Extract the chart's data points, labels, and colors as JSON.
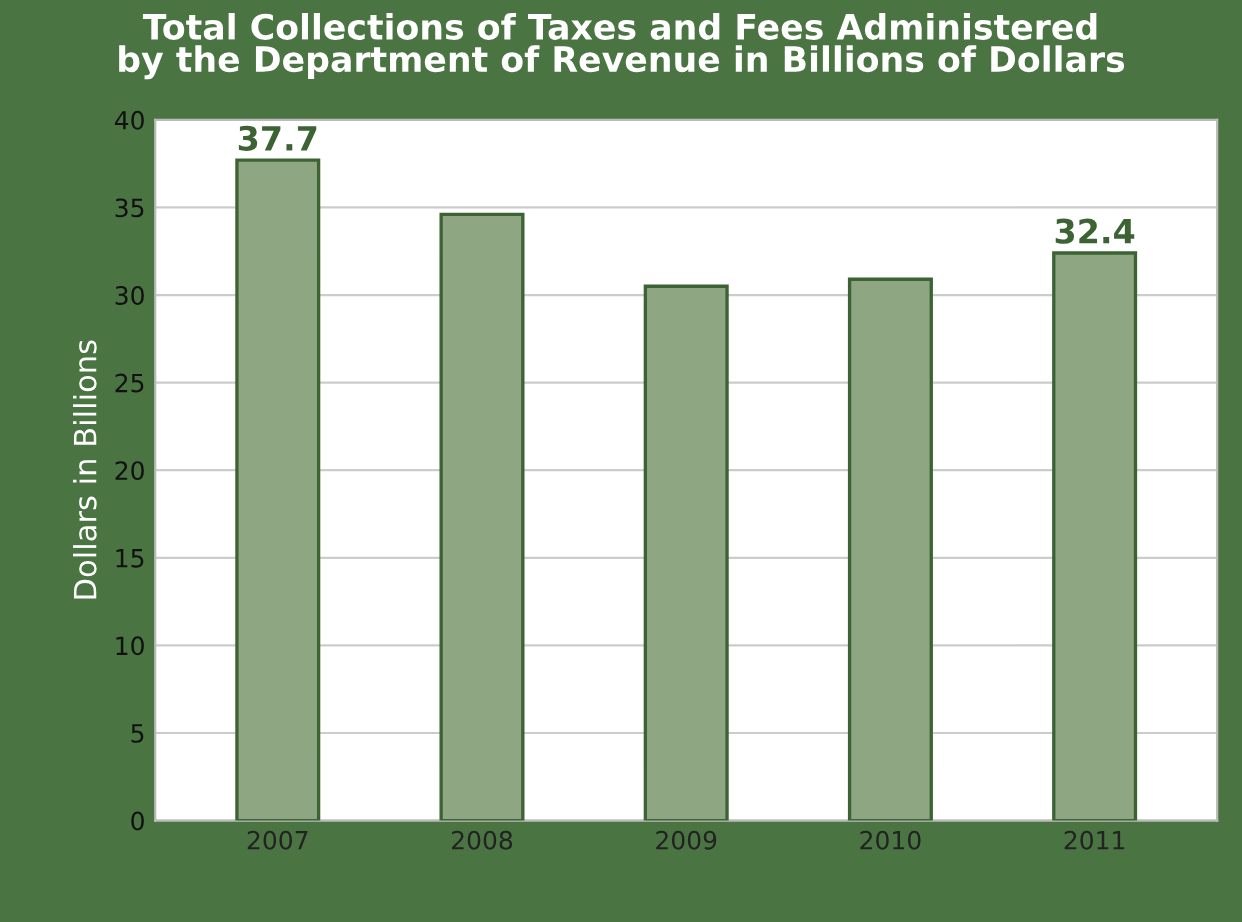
{
  "chart_data": {
    "type": "bar",
    "title": "Total Collections of Taxes and Fees Administered\nby the Department of Revenue in Billions of Dollars",
    "ylabel": "Dollars in Billions",
    "categories": [
      "2007",
      "2008",
      "2009",
      "2010",
      "2011"
    ],
    "values": [
      37.7,
      34.6,
      30.5,
      30.9,
      32.4
    ],
    "value_labels": [
      "37.7",
      null,
      null,
      null,
      "32.4"
    ],
    "color": "#8fa683",
    "ylim": [
      0,
      40
    ],
    "yticks": [
      0,
      5,
      10,
      15,
      20,
      25,
      30,
      35,
      40
    ],
    "grid": "y",
    "legend": false
  }
}
